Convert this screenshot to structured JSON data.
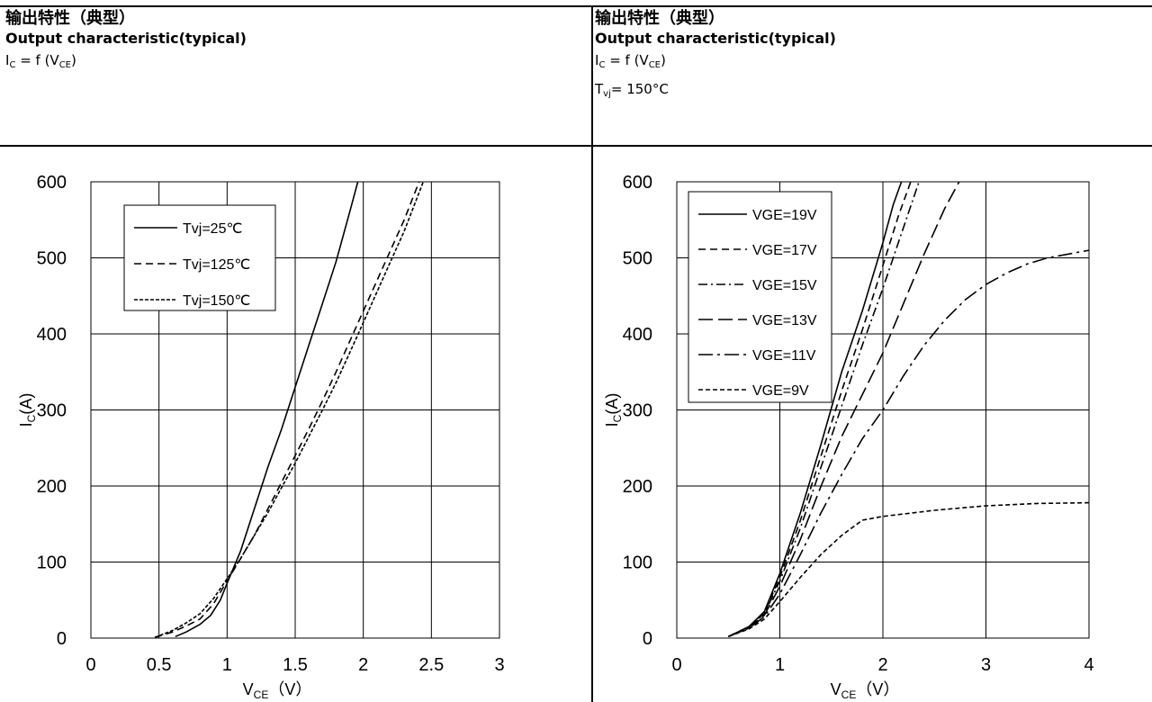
{
  "header": {
    "left": {
      "title_cn": "输出特性（典型）",
      "title_en": "Output characteristic(typical)",
      "eq_I": "I",
      "eq_I_sub": "C",
      "eq_mid": " = f (V",
      "eq_V_sub": "CE",
      "eq_end": ")"
    },
    "right": {
      "title_cn": "输出特性（典型）",
      "title_en": "Output characteristic(typical)",
      "eq_I": "I",
      "eq_I_sub": "C",
      "eq_mid": " = f (V",
      "eq_V_sub": "CE",
      "eq_end": ")",
      "tvj_T": "T",
      "tvj_sub": "vj",
      "tvj_val": "= 150°C"
    }
  },
  "chart_data": [
    {
      "type": "line",
      "xlabel": "V",
      "xlabel_sub": "CE",
      "xlabel_unit": "（V）",
      "ylabel": "I",
      "ylabel_sub": "C",
      "ylabel_unit": "(A)",
      "xlim": [
        0,
        3
      ],
      "ylim": [
        0,
        600
      ],
      "xticks": [
        0,
        0.5,
        1,
        1.5,
        2,
        2.5,
        3
      ],
      "xtick_labels": [
        "0",
        "0.5",
        "1",
        "1.5",
        "2",
        "2.5",
        "3"
      ],
      "yticks": [
        0,
        100,
        200,
        300,
        400,
        500,
        600
      ],
      "ytick_labels": [
        "0",
        "100",
        "200",
        "300",
        "400",
        "500",
        "600"
      ],
      "grid": true,
      "legend_position": "top-left",
      "series": [
        {
          "name": "Tvj=25℃",
          "dash": "solid",
          "x": [
            0.62,
            0.7,
            0.8,
            0.88,
            0.95,
            1.0,
            1.1,
            1.2,
            1.3,
            1.4,
            1.5,
            1.6,
            1.7,
            1.8,
            1.9,
            1.96
          ],
          "y": [
            2,
            8,
            18,
            30,
            50,
            72,
            115,
            170,
            225,
            275,
            330,
            385,
            440,
            495,
            560,
            600
          ]
        },
        {
          "name": "Tvj=125℃",
          "dash": "dash",
          "x": [
            0.47,
            0.6,
            0.7,
            0.8,
            0.9,
            1.0,
            1.1,
            1.2,
            1.3,
            1.4,
            1.5,
            1.6,
            1.7,
            1.8,
            1.9,
            2.0,
            2.1,
            2.2,
            2.3,
            2.41
          ],
          "y": [
            1,
            8,
            16,
            25,
            45,
            75,
            105,
            135,
            170,
            205,
            240,
            275,
            312,
            350,
            390,
            430,
            470,
            510,
            550,
            600
          ]
        },
        {
          "name": "Tvj=150℃",
          "dash": "dot",
          "x": [
            0.47,
            0.6,
            0.7,
            0.8,
            0.9,
            1.0,
            1.1,
            1.2,
            1.3,
            1.4,
            1.5,
            1.6,
            1.7,
            1.8,
            1.9,
            2.0,
            2.1,
            2.2,
            2.3,
            2.44
          ],
          "y": [
            1,
            10,
            20,
            32,
            52,
            78,
            105,
            135,
            165,
            198,
            230,
            265,
            300,
            336,
            375,
            415,
            455,
            495,
            535,
            600
          ]
        }
      ]
    },
    {
      "type": "line",
      "xlabel": "V",
      "xlabel_sub": "CE",
      "xlabel_unit": "（V）",
      "ylabel": "I",
      "ylabel_sub": "C",
      "ylabel_unit": "(A)",
      "xlim": [
        0,
        4
      ],
      "ylim": [
        0,
        600
      ],
      "xticks": [
        0,
        1,
        2,
        3,
        4
      ],
      "xtick_labels": [
        "0",
        "1",
        "2",
        "3",
        "4"
      ],
      "yticks": [
        0,
        100,
        200,
        300,
        400,
        500,
        600
      ],
      "ytick_labels": [
        "0",
        "100",
        "200",
        "300",
        "400",
        "500",
        "600"
      ],
      "grid": true,
      "legend_position": "top-left",
      "series": [
        {
          "name": "VGE=19V",
          "dash": "solid",
          "x": [
            0.5,
            0.7,
            0.85,
            1.0,
            1.2,
            1.4,
            1.6,
            1.8,
            2.0,
            2.1,
            2.18
          ],
          "y": [
            2,
            15,
            35,
            85,
            165,
            255,
            350,
            430,
            520,
            570,
            600
          ]
        },
        {
          "name": "VGE=17V",
          "dash": "dash",
          "x": [
            0.5,
            0.7,
            0.85,
            1.0,
            1.2,
            1.4,
            1.6,
            1.8,
            2.0,
            2.15,
            2.27
          ],
          "y": [
            2,
            15,
            33,
            80,
            155,
            240,
            325,
            405,
            490,
            555,
            600
          ]
        },
        {
          "name": "VGE=15V",
          "dash": "dashdot",
          "x": [
            0.5,
            0.7,
            0.85,
            1.0,
            1.2,
            1.4,
            1.6,
            1.8,
            2.0,
            2.2,
            2.35
          ],
          "y": [
            2,
            15,
            32,
            75,
            145,
            225,
            305,
            385,
            460,
            540,
            600
          ]
        },
        {
          "name": "VGE=13V",
          "dash": "longdash",
          "x": [
            0.5,
            0.7,
            0.85,
            1.0,
            1.2,
            1.4,
            1.6,
            1.8,
            2.0,
            2.2,
            2.4,
            2.6,
            2.74
          ],
          "y": [
            2,
            14,
            30,
            68,
            130,
            200,
            265,
            320,
            375,
            440,
            505,
            565,
            600
          ]
        },
        {
          "name": "VGE=11V",
          "dash": "longdashdot",
          "x": [
            0.5,
            0.7,
            0.85,
            1.0,
            1.2,
            1.4,
            1.6,
            1.8,
            2.0,
            2.2,
            2.4,
            2.6,
            2.8,
            3.0,
            3.2,
            3.4,
            3.6,
            3.8,
            4.0
          ],
          "y": [
            2,
            13,
            28,
            58,
            110,
            165,
            215,
            262,
            300,
            345,
            385,
            418,
            445,
            465,
            480,
            492,
            500,
            505,
            510
          ]
        },
        {
          "name": "VGE=9V",
          "dash": "shortdash",
          "x": [
            0.5,
            0.7,
            0.85,
            1.0,
            1.2,
            1.4,
            1.6,
            1.8,
            2.0,
            2.5,
            3.0,
            3.5,
            4.0
          ],
          "y": [
            2,
            12,
            25,
            48,
            80,
            110,
            135,
            155,
            160,
            168,
            174,
            177,
            178
          ]
        }
      ]
    }
  ]
}
